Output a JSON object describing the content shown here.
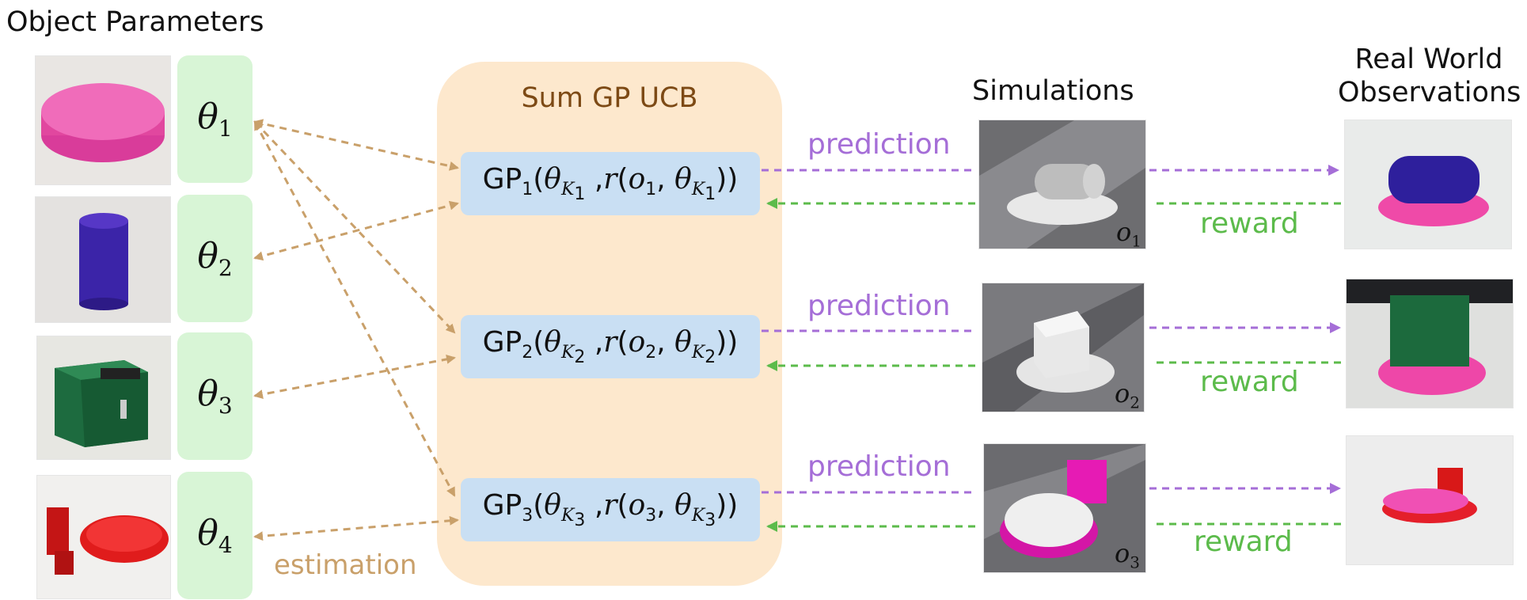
{
  "headings": {
    "object_parameters": "Object Parameters",
    "simulations": "Simulations",
    "real_world_line1": "Real World",
    "real_world_line2": "Observations"
  },
  "sum_panel": {
    "title": "Sum GP UCB"
  },
  "parameters": [
    {
      "symbol": "θ",
      "index": "1"
    },
    {
      "symbol": "θ",
      "index": "2"
    },
    {
      "symbol": "θ",
      "index": "3"
    },
    {
      "symbol": "θ",
      "index": "4"
    }
  ],
  "gp_models": [
    {
      "name": "GP",
      "index": "1",
      "K": "K",
      "k_index": "1",
      "obs": "o",
      "obs_index": "1"
    },
    {
      "name": "GP",
      "index": "2",
      "K": "K",
      "k_index": "2",
      "obs": "o",
      "obs_index": "2"
    },
    {
      "name": "GP",
      "index": "3",
      "K": "K",
      "k_index": "3",
      "obs": "o",
      "obs_index": "3"
    }
  ],
  "simulation_labels": [
    {
      "symbol": "o",
      "index": "1"
    },
    {
      "symbol": "o",
      "index": "2"
    },
    {
      "symbol": "o",
      "index": "3"
    }
  ],
  "flow_labels": {
    "prediction": "prediction",
    "reward": "reward",
    "estimation": "estimation"
  },
  "colors": {
    "estimation_arrow": "#c9a06a",
    "prediction_arrow": "#a56ed7",
    "reward_arrow": "#5cbb4b",
    "theta_box": "#d8f5d6",
    "gp_box": "#c9dff3",
    "sum_panel": "#fde8cd",
    "sum_title": "#7d4a15"
  },
  "photos": {
    "objects": [
      "pink-clay-disc",
      "blue-cylinder",
      "green-box",
      "red-plate-with-block"
    ],
    "simulations": [
      "sim-cylinder-on-clay",
      "sim-cube-on-clay",
      "sim-disc-on-pink"
    ],
    "real_world": [
      "real-blue-cylinder-on-pink",
      "real-green-box-on-pink",
      "real-red-plate-on-pink"
    ]
  }
}
